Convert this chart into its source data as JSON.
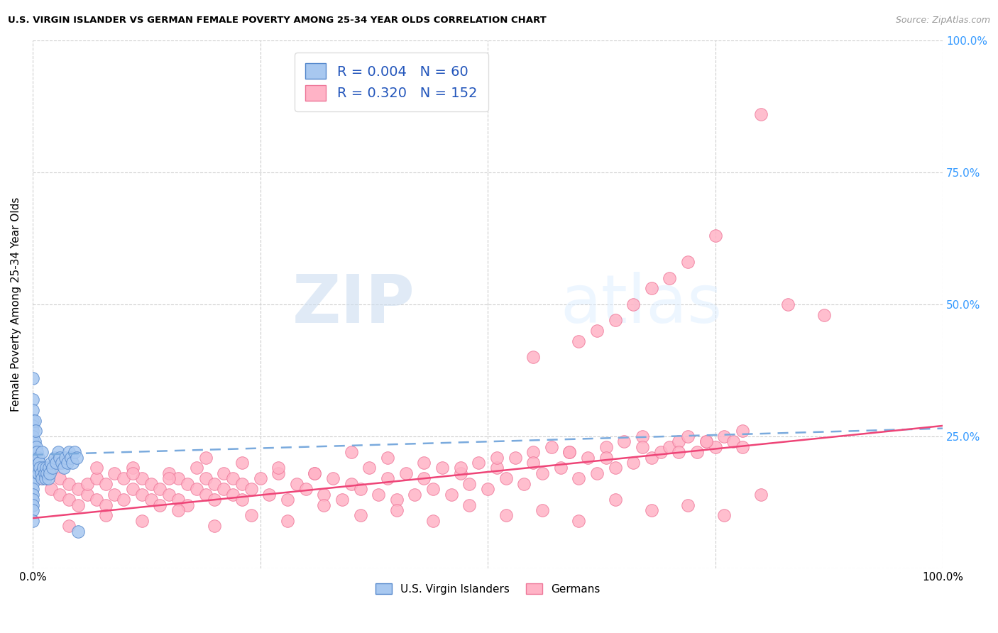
{
  "title": "U.S. VIRGIN ISLANDER VS GERMAN FEMALE POVERTY AMONG 25-34 YEAR OLDS CORRELATION CHART",
  "source": "Source: ZipAtlas.com",
  "ylabel": "Female Poverty Among 25-34 Year Olds",
  "xlim": [
    0,
    1
  ],
  "ylim": [
    0,
    1
  ],
  "background_color": "#ffffff",
  "watermark_zip": "ZIP",
  "watermark_atlas": "atlas",
  "vi_color_fill": "#a8c8f0",
  "vi_color_edge": "#5588cc",
  "vi_line_color": "#7aaadd",
  "vi_line_style": "--",
  "vi_R": 0.004,
  "vi_N": 60,
  "de_color_fill": "#ffb3c6",
  "de_color_edge": "#ee7799",
  "de_line_color": "#ee4477",
  "de_line_style": "-",
  "de_R": 0.32,
  "de_N": 152,
  "vi_x": [
    0.0,
    0.0,
    0.0,
    0.0,
    0.0,
    0.0,
    0.0,
    0.0,
    0.0,
    0.0,
    0.0,
    0.0,
    0.0,
    0.0,
    0.0,
    0.0,
    0.0,
    0.0,
    0.0,
    0.0,
    0.002,
    0.002,
    0.002,
    0.003,
    0.003,
    0.004,
    0.004,
    0.005,
    0.005,
    0.006,
    0.006,
    0.007,
    0.008,
    0.009,
    0.01,
    0.01,
    0.012,
    0.013,
    0.014,
    0.015,
    0.016,
    0.017,
    0.018,
    0.019,
    0.02,
    0.022,
    0.024,
    0.026,
    0.028,
    0.03,
    0.032,
    0.034,
    0.036,
    0.038,
    0.04,
    0.042,
    0.044,
    0.046,
    0.048,
    0.05
  ],
  "vi_y": [
    0.36,
    0.32,
    0.3,
    0.28,
    0.27,
    0.26,
    0.25,
    0.24,
    0.22,
    0.2,
    0.19,
    0.18,
    0.17,
    0.16,
    0.15,
    0.14,
    0.13,
    0.12,
    0.11,
    0.09,
    0.28,
    0.24,
    0.21,
    0.26,
    0.22,
    0.23,
    0.2,
    0.22,
    0.19,
    0.21,
    0.18,
    0.2,
    0.19,
    0.18,
    0.22,
    0.17,
    0.19,
    0.18,
    0.17,
    0.19,
    0.18,
    0.17,
    0.19,
    0.18,
    0.2,
    0.19,
    0.21,
    0.2,
    0.22,
    0.21,
    0.2,
    0.19,
    0.21,
    0.2,
    0.22,
    0.21,
    0.2,
    0.22,
    0.21,
    0.07
  ],
  "de_x": [
    0.01,
    0.02,
    0.02,
    0.03,
    0.03,
    0.04,
    0.04,
    0.05,
    0.05,
    0.06,
    0.06,
    0.07,
    0.07,
    0.08,
    0.08,
    0.09,
    0.09,
    0.1,
    0.1,
    0.11,
    0.11,
    0.12,
    0.12,
    0.13,
    0.13,
    0.14,
    0.14,
    0.15,
    0.15,
    0.16,
    0.16,
    0.17,
    0.17,
    0.18,
    0.18,
    0.19,
    0.19,
    0.2,
    0.2,
    0.21,
    0.21,
    0.22,
    0.22,
    0.23,
    0.23,
    0.24,
    0.25,
    0.26,
    0.27,
    0.28,
    0.29,
    0.3,
    0.31,
    0.32,
    0.33,
    0.34,
    0.35,
    0.36,
    0.37,
    0.38,
    0.39,
    0.4,
    0.41,
    0.42,
    0.43,
    0.44,
    0.45,
    0.46,
    0.47,
    0.48,
    0.49,
    0.5,
    0.51,
    0.52,
    0.53,
    0.54,
    0.55,
    0.56,
    0.57,
    0.58,
    0.59,
    0.6,
    0.61,
    0.62,
    0.63,
    0.64,
    0.65,
    0.66,
    0.67,
    0.68,
    0.69,
    0.7,
    0.71,
    0.72,
    0.73,
    0.74,
    0.75,
    0.76,
    0.77,
    0.78,
    0.04,
    0.08,
    0.12,
    0.16,
    0.2,
    0.24,
    0.28,
    0.32,
    0.36,
    0.4,
    0.44,
    0.48,
    0.52,
    0.56,
    0.6,
    0.64,
    0.68,
    0.72,
    0.76,
    0.8,
    0.03,
    0.07,
    0.11,
    0.15,
    0.19,
    0.23,
    0.27,
    0.31,
    0.35,
    0.39,
    0.43,
    0.47,
    0.51,
    0.55,
    0.59,
    0.63,
    0.67,
    0.71,
    0.74,
    0.78,
    0.55,
    0.6,
    0.62,
    0.64,
    0.66,
    0.68,
    0.7,
    0.72,
    0.75,
    0.8,
    0.83,
    0.87
  ],
  "de_y": [
    0.17,
    0.15,
    0.19,
    0.14,
    0.17,
    0.13,
    0.16,
    0.12,
    0.15,
    0.14,
    0.16,
    0.13,
    0.17,
    0.12,
    0.16,
    0.14,
    0.18,
    0.13,
    0.17,
    0.15,
    0.19,
    0.14,
    0.17,
    0.13,
    0.16,
    0.12,
    0.15,
    0.14,
    0.18,
    0.13,
    0.17,
    0.12,
    0.16,
    0.15,
    0.19,
    0.14,
    0.17,
    0.13,
    0.16,
    0.15,
    0.18,
    0.14,
    0.17,
    0.13,
    0.16,
    0.15,
    0.17,
    0.14,
    0.18,
    0.13,
    0.16,
    0.15,
    0.18,
    0.14,
    0.17,
    0.13,
    0.16,
    0.15,
    0.19,
    0.14,
    0.17,
    0.13,
    0.18,
    0.14,
    0.17,
    0.15,
    0.19,
    0.14,
    0.18,
    0.16,
    0.2,
    0.15,
    0.19,
    0.17,
    0.21,
    0.16,
    0.22,
    0.18,
    0.23,
    0.19,
    0.22,
    0.17,
    0.21,
    0.18,
    0.23,
    0.19,
    0.24,
    0.2,
    0.25,
    0.21,
    0.22,
    0.23,
    0.24,
    0.25,
    0.22,
    0.24,
    0.23,
    0.25,
    0.24,
    0.26,
    0.08,
    0.1,
    0.09,
    0.11,
    0.08,
    0.1,
    0.09,
    0.12,
    0.1,
    0.11,
    0.09,
    0.12,
    0.1,
    0.11,
    0.09,
    0.13,
    0.11,
    0.12,
    0.1,
    0.14,
    0.2,
    0.19,
    0.18,
    0.17,
    0.21,
    0.2,
    0.19,
    0.18,
    0.22,
    0.21,
    0.2,
    0.19,
    0.21,
    0.2,
    0.22,
    0.21,
    0.23,
    0.22,
    0.24,
    0.23,
    0.4,
    0.43,
    0.45,
    0.47,
    0.5,
    0.53,
    0.55,
    0.58,
    0.63,
    0.86,
    0.5,
    0.48
  ]
}
